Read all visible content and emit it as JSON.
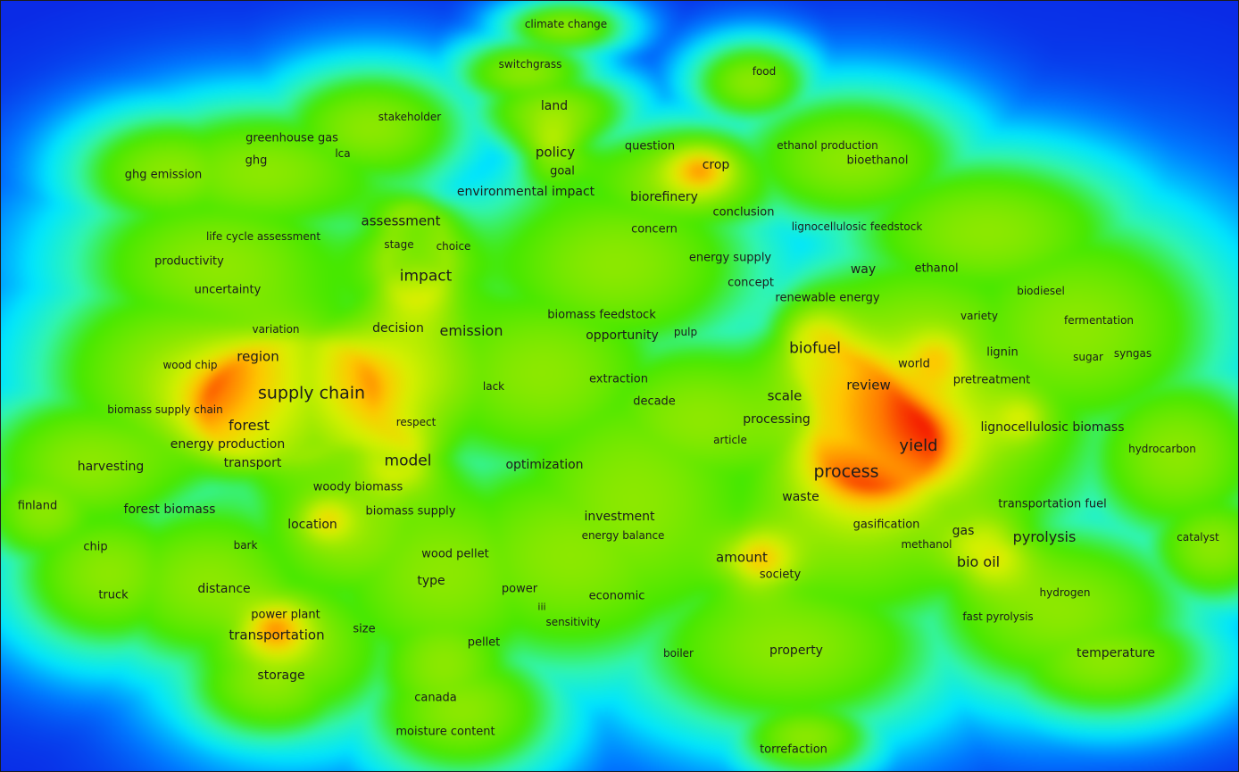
{
  "colors": {
    "density_scale": [
      "#0a2be6",
      "#00e6ff",
      "#31f5b0",
      "#46e800",
      "#d8f000",
      "#ffc800",
      "#ff7a00",
      "#f10000"
    ]
  },
  "terms": [
    "climate change",
    "switchgrass",
    "food",
    "land",
    "stakeholder",
    "greenhouse gas",
    "lca",
    "ghg",
    "ghg emission",
    "policy",
    "goal",
    "question",
    "ethanol production",
    "crop",
    "bioethanol",
    "environmental impact",
    "biorefinery",
    "assessment",
    "conclusion",
    "concern",
    "lignocellulosic feedstock",
    "life cycle assessment",
    "stage",
    "choice",
    "energy supply",
    "productivity",
    "way",
    "ethanol",
    "impact",
    "concept",
    "uncertainty",
    "biodiesel",
    "renewable energy",
    "biomass feedstock",
    "variety",
    "fermentation",
    "decision",
    "emission",
    "variation",
    "opportunity",
    "pulp",
    "biofuel",
    "lignin",
    "sugar",
    "syngas",
    "region",
    "wood chip",
    "world",
    "extraction",
    "pretreatment",
    "lack",
    "review",
    "supply chain",
    "decade",
    "scale",
    "biomass supply chain",
    "respect",
    "processing",
    "forest",
    "lignocellulosic biomass",
    "article",
    "energy production",
    "yield",
    "hydrocarbon",
    "harvesting",
    "transport",
    "model",
    "optimization",
    "process",
    "woody biomass",
    "waste",
    "transportation fuel",
    "finland",
    "forest biomass",
    "biomass supply",
    "investment",
    "gasification",
    "location",
    "energy balance",
    "gas",
    "pyrolysis",
    "catalyst",
    "methanol",
    "chip",
    "bark",
    "wood pellet",
    "amount",
    "bio oil",
    "type",
    "society",
    "distance",
    "power",
    "truck",
    "economic",
    "hydrogen",
    "iii",
    "power plant",
    "fast pyrolysis",
    "sensitivity",
    "size",
    "transportation",
    "pellet",
    "boiler",
    "property",
    "temperature",
    "storage",
    "canada",
    "moisture content",
    "torrefaction"
  ]
}
